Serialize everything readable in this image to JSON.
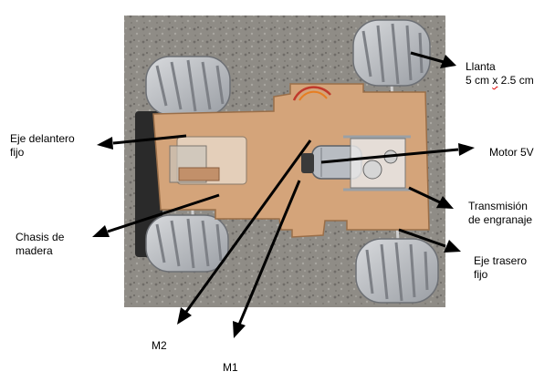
{
  "labels": {
    "llanta": {
      "line1": "Llanta",
      "line2_a": "5 cm ",
      "line2_x": "x",
      "line2_b": " 2.5 cm"
    },
    "eje_delantero": {
      "line1": "Eje delantero",
      "line2": "fijo"
    },
    "motor": {
      "line1": "Motor 5V"
    },
    "transmision": {
      "line1": "Transmisión",
      "line2": "de engranaje"
    },
    "chasis": {
      "line1": "Chasis de",
      "line2": "madera"
    },
    "eje_trasero": {
      "line1": "Eje trasero",
      "line2": "fijo"
    },
    "m2": {
      "line1": "M2"
    },
    "m1": {
      "line1": "M1"
    }
  },
  "colors": {
    "background": "#ffffff",
    "ground": "#8f8c86",
    "wood": "#d4a47a",
    "tire": "#b9bcc0",
    "arrow": "#000000",
    "wire": "#c0392b"
  }
}
